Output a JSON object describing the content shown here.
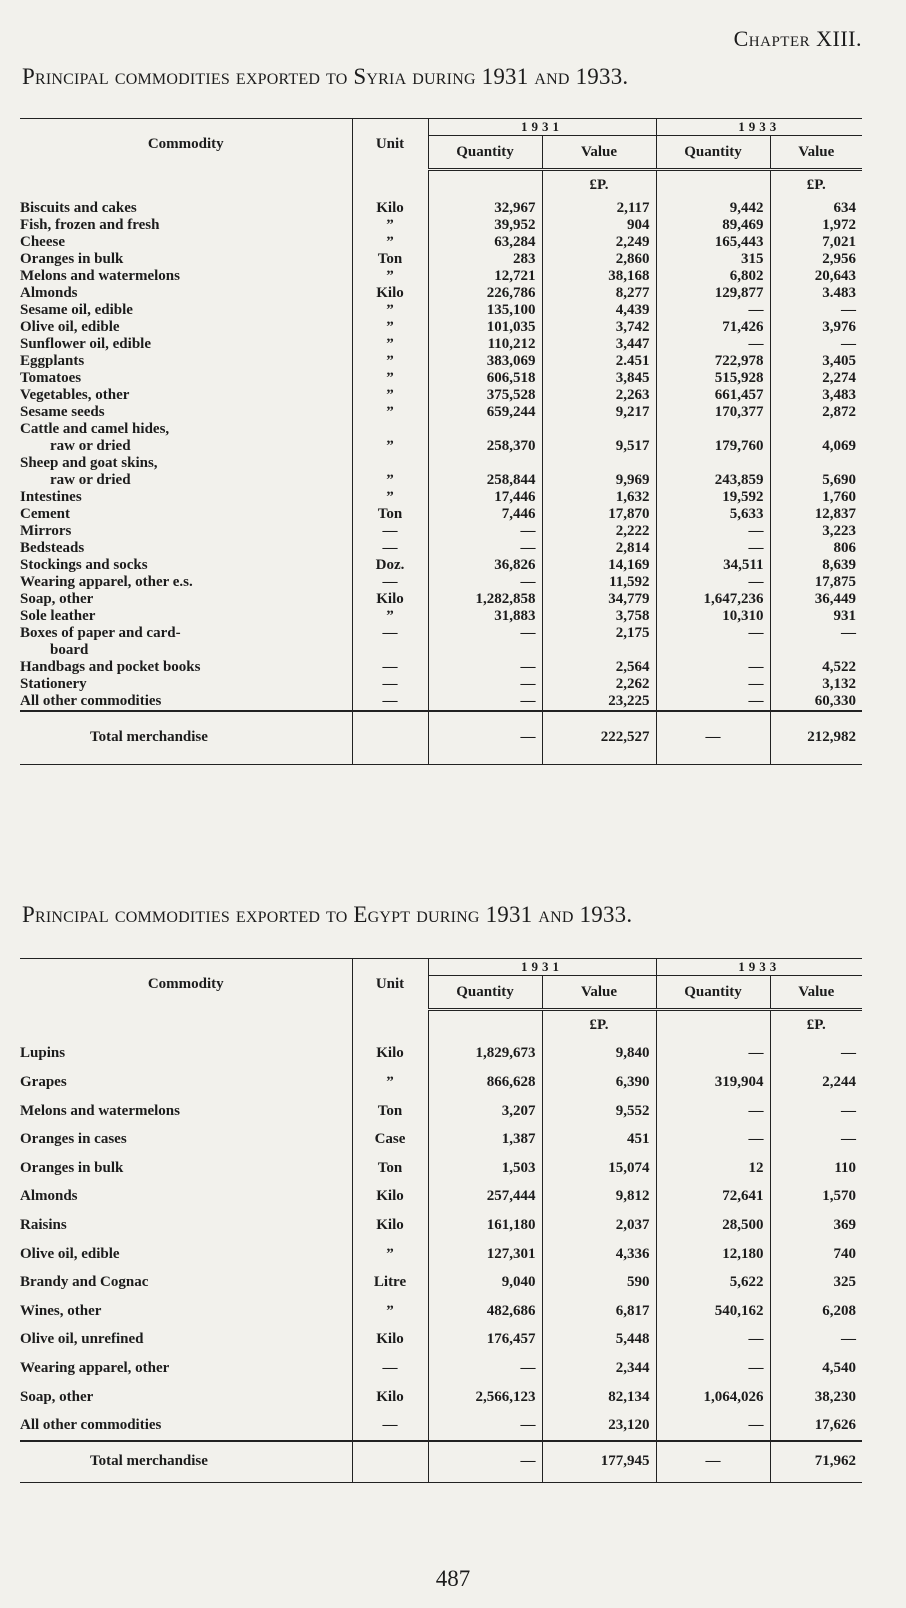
{
  "chapter": "Chapter XIII.",
  "page_number": "487",
  "tables": [
    {
      "title": "Principal commodities exported to Syria during 1931 and 1933.",
      "headers": {
        "commodity": "Commodity",
        "unit": "Unit",
        "year1": "1931",
        "year2": "1933",
        "quantity": "Quantity",
        "value": "Value",
        "currency": "£P."
      },
      "rows": [
        {
          "name": [
            "Biscuits and cakes"
          ],
          "unit": "Kilo",
          "q1931": "32,967",
          "v1931": "2,117",
          "q1933": "9,442",
          "v1933": "634"
        },
        {
          "name": [
            "Fish, frozen and fresh"
          ],
          "unit": "”",
          "q1931": "39,952",
          "v1931": "904",
          "q1933": "89,469",
          "v1933": "1,972"
        },
        {
          "name": [
            "Cheese"
          ],
          "unit": "”",
          "q1931": "63,284",
          "v1931": "2,249",
          "q1933": "165,443",
          "v1933": "7,021"
        },
        {
          "name": [
            "Oranges in bulk"
          ],
          "unit": "Ton",
          "q1931": "283",
          "v1931": "2,860",
          "q1933": "315",
          "v1933": "2,956"
        },
        {
          "name": [
            "Melons and watermelons"
          ],
          "unit": "”",
          "q1931": "12,721",
          "v1931": "38,168",
          "q1933": "6,802",
          "v1933": "20,643"
        },
        {
          "name": [
            "Almonds"
          ],
          "unit": "Kilo",
          "q1931": "226,786",
          "v1931": "8,277",
          "q1933": "129,877",
          "v1933": "3.483"
        },
        {
          "name": [
            "Sesame oil, edible"
          ],
          "unit": "”",
          "q1931": "135,100",
          "v1931": "4,439",
          "q1933": "—",
          "v1933": "—"
        },
        {
          "name": [
            "Olive oil, edible"
          ],
          "unit": "”",
          "q1931": "101,035",
          "v1931": "3,742",
          "q1933": "71,426",
          "v1933": "3,976"
        },
        {
          "name": [
            "Sunflower oil, edible"
          ],
          "unit": "”",
          "q1931": "110,212",
          "v1931": "3,447",
          "q1933": "—",
          "v1933": "—"
        },
        {
          "name": [
            "Eggplants"
          ],
          "unit": "”",
          "q1931": "383,069",
          "v1931": "2.451",
          "q1933": "722,978",
          "v1933": "3,405"
        },
        {
          "name": [
            "Tomatoes"
          ],
          "unit": "”",
          "q1931": "606,518",
          "v1931": "3,845",
          "q1933": "515,928",
          "v1933": "2,274"
        },
        {
          "name": [
            "Vegetables, other"
          ],
          "unit": "”",
          "q1931": "375,528",
          "v1931": "2,263",
          "q1933": "661,457",
          "v1933": "3,483"
        },
        {
          "name": [
            "Sesame seeds"
          ],
          "unit": "”",
          "q1931": "659,244",
          "v1931": "9,217",
          "q1933": "170,377",
          "v1933": "2,872"
        },
        {
          "name": [
            "Cattle and camel hides,",
            "raw or dried"
          ],
          "unit": "”",
          "q1931": "258,370",
          "v1931": "9,517",
          "q1933": "179,760",
          "v1933": "4,069"
        },
        {
          "name": [
            "Sheep and goat skins,",
            "raw or dried"
          ],
          "unit": "”",
          "q1931": "258,844",
          "v1931": "9,969",
          "q1933": "243,859",
          "v1933": "5,690"
        },
        {
          "name": [
            "Intestines"
          ],
          "unit": "”",
          "q1931": "17,446",
          "v1931": "1,632",
          "q1933": "19,592",
          "v1933": "1,760"
        },
        {
          "name": [
            "Cement"
          ],
          "unit": "Ton",
          "q1931": "7,446",
          "v1931": "17,870",
          "q1933": "5,633",
          "v1933": "12,837"
        },
        {
          "name": [
            "Mirrors"
          ],
          "unit": "—",
          "q1931": "—",
          "v1931": "2,222",
          "q1933": "—",
          "v1933": "3,223"
        },
        {
          "name": [
            "Bedsteads"
          ],
          "unit": "—",
          "q1931": "—",
          "v1931": "2,814",
          "q1933": "—",
          "v1933": "806"
        },
        {
          "name": [
            "Stockings and socks"
          ],
          "unit": "Doz.",
          "q1931": "36,826",
          "v1931": "14,169",
          "q1933": "34,511",
          "v1933": "8,639"
        },
        {
          "name": [
            "Wearing apparel, other e.s."
          ],
          "unit": "—",
          "q1931": "—",
          "v1931": "11,592",
          "q1933": "—",
          "v1933": "17,875"
        },
        {
          "name": [
            "Soap, other"
          ],
          "unit": "Kilo",
          "q1931": "1,282,858",
          "v1931": "34,779",
          "q1933": "1,647,236",
          "v1933": "36,449"
        },
        {
          "name": [
            "Sole leather"
          ],
          "unit": "”",
          "q1931": "31,883",
          "v1931": "3,758",
          "q1933": "10,310",
          "v1933": "931"
        },
        {
          "name": [
            "Boxes of paper and card-",
            "board"
          ],
          "unit": "—",
          "q1931": "—",
          "v1931": "2,175",
          "q1933": "—",
          "v1933": "—"
        },
        {
          "name": [
            "Handbags and pocket books"
          ],
          "unit": "—",
          "q1931": "—",
          "v1931": "2,564",
          "q1933": "—",
          "v1933": "4,522"
        },
        {
          "name": [
            "Stationery"
          ],
          "unit": "—",
          "q1931": "—",
          "v1931": "2,262",
          "q1933": "—",
          "v1933": "3,132"
        },
        {
          "name": [
            "All other commodities"
          ],
          "unit": "—",
          "q1931": "—",
          "v1931": "23,225",
          "q1933": "—",
          "v1933": "60,330"
        }
      ],
      "total": {
        "name": "Total merchandise",
        "q1931": "—",
        "v1931": "222,527",
        "q1933": "—",
        "v1933": "212,982"
      }
    },
    {
      "title": "Principal commodities exported to Egypt during 1931 and 1933.",
      "headers": {
        "commodity": "Commodity",
        "unit": "Unit",
        "year1": "1931",
        "year2": "1933",
        "quantity": "Quantity",
        "value": "Value",
        "currency": "£P."
      },
      "rows": [
        {
          "name": [
            "Lupins"
          ],
          "unit": "Kilo",
          "q1931": "1,829,673",
          "v1931": "9,840",
          "q1933": "—",
          "v1933": "—"
        },
        {
          "name": [
            "Grapes"
          ],
          "unit": "”",
          "q1931": "866,628",
          "v1931": "6,390",
          "q1933": "319,904",
          "v1933": "2,244"
        },
        {
          "name": [
            "Melons and watermelons"
          ],
          "unit": "Ton",
          "q1931": "3,207",
          "v1931": "9,552",
          "q1933": "—",
          "v1933": "—"
        },
        {
          "name": [
            "Oranges in cases"
          ],
          "unit": "Case",
          "q1931": "1,387",
          "v1931": "451",
          "q1933": "—",
          "v1933": "—"
        },
        {
          "name": [
            "Oranges in bulk"
          ],
          "unit": "Ton",
          "q1931": "1,503",
          "v1931": "15,074",
          "q1933": "12",
          "v1933": "110"
        },
        {
          "name": [
            "Almonds"
          ],
          "unit": "Kilo",
          "q1931": "257,444",
          "v1931": "9,812",
          "q1933": "72,641",
          "v1933": "1,570"
        },
        {
          "name": [
            "Raisins"
          ],
          "unit": "Kilo",
          "q1931": "161,180",
          "v1931": "2,037",
          "q1933": "28,500",
          "v1933": "369"
        },
        {
          "name": [
            "Olive oil, edible"
          ],
          "unit": "”",
          "q1931": "127,301",
          "v1931": "4,336",
          "q1933": "12,180",
          "v1933": "740"
        },
        {
          "name": [
            "Brandy and Cognac"
          ],
          "unit": "Litre",
          "q1931": "9,040",
          "v1931": "590",
          "q1933": "5,622",
          "v1933": "325"
        },
        {
          "name": [
            "Wines, other"
          ],
          "unit": "”",
          "q1931": "482,686",
          "v1931": "6,817",
          "q1933": "540,162",
          "v1933": "6,208"
        },
        {
          "name": [
            "Olive oil, unrefined"
          ],
          "unit": "Kilo",
          "q1931": "176,457",
          "v1931": "5,448",
          "q1933": "—",
          "v1933": "—"
        },
        {
          "name": [
            "Wearing apparel, other"
          ],
          "unit": "—",
          "q1931": "—",
          "v1931": "2,344",
          "q1933": "—",
          "v1933": "4,540"
        },
        {
          "name": [
            "Soap, other"
          ],
          "unit": "Kilo",
          "q1931": "2,566,123",
          "v1931": "82,134",
          "q1933": "1,064,026",
          "v1933": "38,230"
        },
        {
          "name": [
            "All other commodities"
          ],
          "unit": "—",
          "q1931": "—",
          "v1931": "23,120",
          "q1933": "—",
          "v1933": "17,626"
        }
      ],
      "total": {
        "name": "Total merchandise",
        "q1931": "—",
        "v1931": "177,945",
        "q1933": "—",
        "v1933": "71,962"
      }
    }
  ]
}
